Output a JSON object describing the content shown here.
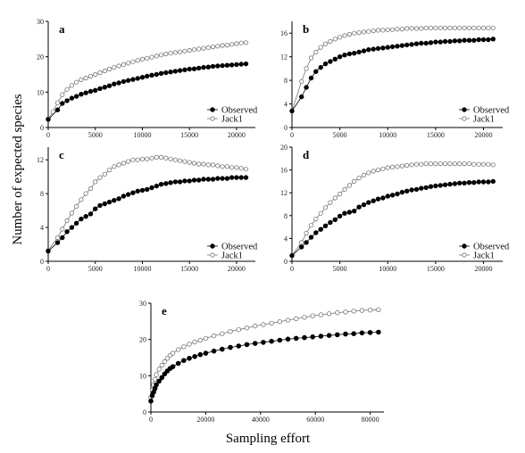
{
  "figure": {
    "ylabel": "Number of expected species",
    "xlabel": "Sampling effort"
  },
  "colors": {
    "observed": "#000000",
    "jack1": "#777777",
    "axis": "#000000"
  },
  "chart_data": [
    {
      "panel": "a",
      "type": "scatter",
      "xlim": [
        0,
        22000
      ],
      "ylim": [
        0,
        30
      ],
      "xticks": [
        0,
        5000,
        10000,
        15000,
        20000
      ],
      "yticks": [
        0,
        10,
        20,
        30
      ],
      "show_legend": true,
      "series": [
        {
          "name": "Observed",
          "key": "observed",
          "x": [
            0,
            1000,
            1500,
            2000,
            2500,
            3000,
            3500,
            4000,
            4500,
            5000,
            5500,
            6000,
            6500,
            7000,
            7500,
            8000,
            8500,
            9000,
            9500,
            10000,
            10500,
            11000,
            11500,
            12000,
            12500,
            13000,
            13500,
            14000,
            14500,
            15000,
            15500,
            16000,
            16500,
            17000,
            17500,
            18000,
            18500,
            19000,
            19500,
            20000,
            20500,
            21000
          ],
          "y": [
            2.3,
            5,
            6.8,
            7.6,
            8.3,
            8.8,
            9.4,
            9.8,
            10.2,
            10.5,
            11,
            11.4,
            11.8,
            12.3,
            12.6,
            13,
            13.3,
            13.6,
            13.9,
            14.2,
            14.5,
            14.8,
            15,
            15.3,
            15.5,
            15.7,
            15.9,
            16.1,
            16.3,
            16.5,
            16.6,
            16.8,
            17,
            17.1,
            17.3,
            17.4,
            17.5,
            17.6,
            17.7,
            17.8,
            17.9,
            18
          ]
        },
        {
          "name": "Jack1",
          "key": "jack1",
          "x": [
            0,
            500,
            1000,
            1500,
            2000,
            2500,
            3000,
            3500,
            4000,
            4500,
            5000,
            5500,
            6000,
            6500,
            7000,
            7500,
            8000,
            8500,
            9000,
            9500,
            10000,
            10500,
            11000,
            11500,
            12000,
            12500,
            13000,
            13500,
            14000,
            14500,
            15000,
            15500,
            16000,
            16500,
            17000,
            17500,
            18000,
            18500,
            19000,
            19500,
            20000,
            20500,
            21000
          ],
          "y": [
            2.5,
            4.5,
            7,
            9.3,
            10.8,
            11.9,
            12.8,
            13.5,
            14,
            14.5,
            15,
            15.5,
            16,
            16.5,
            17,
            17.4,
            17.8,
            18.2,
            18.6,
            19,
            19.3,
            19.6,
            19.9,
            20.2,
            20.5,
            20.8,
            21,
            21.2,
            21.4,
            21.6,
            21.8,
            22,
            22.2,
            22.4,
            22.6,
            22.8,
            23,
            23.2,
            23.3,
            23.5,
            23.7,
            23.9,
            24
          ]
        }
      ]
    },
    {
      "panel": "b",
      "type": "scatter",
      "xlim": [
        0,
        22000
      ],
      "ylim": [
        0,
        18
      ],
      "xticks": [
        0,
        5000,
        10000,
        15000,
        20000
      ],
      "yticks": [
        0,
        4,
        8,
        12,
        16
      ],
      "show_legend": true,
      "series": [
        {
          "name": "Observed",
          "key": "observed",
          "x": [
            0,
            1000,
            1500,
            2000,
            2500,
            3000,
            3500,
            4000,
            4500,
            5000,
            5500,
            6000,
            6500,
            7000,
            7500,
            8000,
            8500,
            9000,
            9500,
            10000,
            10500,
            11000,
            11500,
            12000,
            12500,
            13000,
            13500,
            14000,
            14500,
            15000,
            15500,
            16000,
            16500,
            17000,
            17500,
            18000,
            18500,
            19000,
            19500,
            20000,
            20500,
            21000
          ],
          "y": [
            2.8,
            5.2,
            6.8,
            8.4,
            9.5,
            10.2,
            10.8,
            11.2,
            11.6,
            12,
            12.3,
            12.5,
            12.6,
            12.8,
            13,
            13.2,
            13.3,
            13.4,
            13.5,
            13.6,
            13.7,
            13.8,
            13.9,
            14,
            14.1,
            14.2,
            14.3,
            14.3,
            14.4,
            14.5,
            14.5,
            14.6,
            14.6,
            14.7,
            14.7,
            14.8,
            14.8,
            14.8,
            14.9,
            14.9,
            14.9,
            15
          ]
        },
        {
          "name": "Jack1",
          "key": "jack1",
          "x": [
            0,
            1000,
            1500,
            2000,
            2500,
            3000,
            3500,
            4000,
            4500,
            5000,
            5500,
            6000,
            6500,
            7000,
            7500,
            8000,
            8500,
            9000,
            9500,
            10000,
            10500,
            11000,
            11500,
            12000,
            12500,
            13000,
            13500,
            14000,
            14500,
            15000,
            15500,
            16000,
            16500,
            17000,
            17500,
            18000,
            18500,
            19000,
            19500,
            20000,
            20500,
            21000
          ],
          "y": [
            2.8,
            7.8,
            10,
            11.8,
            12.8,
            13.6,
            14.2,
            14.6,
            15,
            15.3,
            15.6,
            15.8,
            16,
            16.1,
            16.2,
            16.3,
            16.4,
            16.5,
            16.5,
            16.6,
            16.6,
            16.7,
            16.7,
            16.8,
            16.8,
            16.8,
            16.8,
            16.9,
            16.9,
            16.9,
            16.9,
            16.9,
            16.9,
            16.9,
            16.9,
            16.9,
            16.9,
            16.9,
            16.9,
            16.9,
            16.9,
            16.9
          ]
        }
      ]
    },
    {
      "panel": "c",
      "type": "scatter",
      "xlim": [
        0,
        22000
      ],
      "ylim": [
        0,
        13.5
      ],
      "xticks": [
        0,
        5000,
        10000,
        15000,
        20000
      ],
      "yticks": [
        0,
        4,
        8,
        12
      ],
      "show_legend": true,
      "series": [
        {
          "name": "Observed",
          "key": "observed",
          "x": [
            0,
            1000,
            1500,
            2000,
            2500,
            3000,
            3500,
            4000,
            4500,
            5000,
            5500,
            6000,
            6500,
            7000,
            7500,
            8000,
            8500,
            9000,
            9500,
            10000,
            10500,
            11000,
            11500,
            12000,
            12500,
            13000,
            13500,
            14000,
            14500,
            15000,
            15500,
            16000,
            16500,
            17000,
            17500,
            18000,
            18500,
            19000,
            19500,
            20000,
            20500,
            21000
          ],
          "y": [
            1.2,
            2.2,
            2.8,
            3.5,
            4,
            4.5,
            5,
            5.3,
            5.6,
            6.2,
            6.6,
            6.8,
            7,
            7.2,
            7.4,
            7.7,
            7.9,
            8.1,
            8.3,
            8.4,
            8.5,
            8.7,
            8.9,
            9.1,
            9.2,
            9.3,
            9.4,
            9.4,
            9.5,
            9.5,
            9.6,
            9.6,
            9.7,
            9.7,
            9.7,
            9.8,
            9.8,
            9.8,
            9.9,
            9.9,
            9.9,
            9.9
          ]
        },
        {
          "name": "Jack1",
          "key": "jack1",
          "x": [
            0,
            1000,
            1500,
            2000,
            2500,
            3000,
            3500,
            4000,
            4500,
            5000,
            5500,
            6000,
            6500,
            7000,
            7500,
            8000,
            8500,
            9000,
            9500,
            10000,
            10500,
            11000,
            11500,
            12000,
            12500,
            13000,
            13500,
            14000,
            14500,
            15000,
            15500,
            16000,
            16500,
            17000,
            17500,
            18000,
            18500,
            19000,
            19500,
            20000,
            20500,
            21000
          ],
          "y": [
            1.3,
            2.8,
            3.8,
            4.8,
            5.7,
            6.5,
            7.3,
            8,
            8.6,
            9.4,
            9.9,
            10.3,
            10.8,
            11.2,
            11.4,
            11.6,
            11.8,
            12,
            12,
            12.1,
            12.1,
            12.2,
            12.3,
            12.3,
            12.2,
            12.1,
            12,
            11.9,
            11.8,
            11.7,
            11.6,
            11.5,
            11.5,
            11.4,
            11.4,
            11.3,
            11.2,
            11.2,
            11.1,
            11.1,
            11,
            10.9
          ]
        }
      ]
    },
    {
      "panel": "d",
      "type": "scatter",
      "xlim": [
        0,
        22000
      ],
      "ylim": [
        0,
        20
      ],
      "xticks": [
        0,
        5000,
        10000,
        15000,
        20000
      ],
      "yticks": [
        0,
        4,
        8,
        12,
        16,
        20
      ],
      "show_legend": true,
      "series": [
        {
          "name": "Observed",
          "key": "observed",
          "x": [
            0,
            1000,
            1500,
            2000,
            2500,
            3000,
            3500,
            4000,
            4500,
            5000,
            5500,
            6000,
            6500,
            7000,
            7500,
            8000,
            8500,
            9000,
            9500,
            10000,
            10500,
            11000,
            11500,
            12000,
            12500,
            13000,
            13500,
            14000,
            14500,
            15000,
            15500,
            16000,
            16500,
            17000,
            17500,
            18000,
            18500,
            19000,
            19500,
            20000,
            20500,
            21000
          ],
          "y": [
            1,
            2.5,
            3.3,
            4.2,
            5,
            5.6,
            6.2,
            6.8,
            7.3,
            7.9,
            8.4,
            8.6,
            8.8,
            9.5,
            9.9,
            10.3,
            10.6,
            10.9,
            11.1,
            11.4,
            11.6,
            11.8,
            12.1,
            12.3,
            12.5,
            12.6,
            12.8,
            12.9,
            13.1,
            13.2,
            13.3,
            13.4,
            13.5,
            13.6,
            13.7,
            13.7,
            13.8,
            13.8,
            13.9,
            13.9,
            13.9,
            14
          ]
        },
        {
          "name": "Jack1",
          "key": "jack1",
          "x": [
            0,
            1000,
            1500,
            2000,
            2500,
            3000,
            3500,
            4000,
            4500,
            5000,
            5500,
            6000,
            6500,
            7000,
            7500,
            8000,
            8500,
            9000,
            9500,
            10000,
            10500,
            11000,
            11500,
            12000,
            12500,
            13000,
            13500,
            14000,
            14500,
            15000,
            15500,
            16000,
            16500,
            17000,
            17500,
            18000,
            18500,
            19000,
            19500,
            20000,
            20500,
            21000
          ],
          "y": [
            1,
            3.3,
            4.9,
            6.3,
            7.4,
            8.4,
            9.4,
            10.3,
            11.1,
            11.8,
            12.6,
            13.3,
            14,
            14.6,
            15.1,
            15.5,
            15.8,
            16,
            16.2,
            16.4,
            16.5,
            16.6,
            16.7,
            16.8,
            16.9,
            17,
            17,
            17.1,
            17.1,
            17.1,
            17.1,
            17.1,
            17.1,
            17.1,
            17.1,
            17.1,
            17.1,
            17,
            17,
            17,
            17,
            16.9
          ]
        }
      ]
    },
    {
      "panel": "e",
      "type": "scatter",
      "xlim": [
        0,
        85000
      ],
      "ylim": [
        0,
        30
      ],
      "xticks": [
        0,
        20000,
        40000,
        60000,
        80000
      ],
      "yticks": [
        0,
        10,
        20,
        30
      ],
      "show_legend": false,
      "series": [
        {
          "name": "Observed",
          "key": "observed",
          "x": [
            0,
            500,
            1000,
            1500,
            2000,
            3000,
            4000,
            5000,
            6000,
            7000,
            8000,
            10000,
            12000,
            14000,
            16000,
            18000,
            20000,
            23000,
            26000,
            29000,
            32000,
            35000,
            38000,
            41000,
            44000,
            47000,
            50000,
            53000,
            56000,
            59000,
            62000,
            65000,
            68000,
            71000,
            74000,
            77000,
            80000,
            83000
          ],
          "y": [
            3,
            4.5,
            5.5,
            6.5,
            7.5,
            8.5,
            9.5,
            10.5,
            11.3,
            12,
            12.5,
            13.4,
            14.2,
            14.8,
            15.3,
            15.8,
            16.2,
            16.8,
            17.3,
            17.8,
            18.2,
            18.6,
            18.9,
            19.2,
            19.5,
            19.8,
            20.1,
            20.3,
            20.5,
            20.7,
            20.9,
            21.1,
            21.3,
            21.5,
            21.6,
            21.8,
            21.9,
            22
          ]
        },
        {
          "name": "Jack1",
          "key": "jack1",
          "x": [
            0,
            500,
            1000,
            1500,
            2000,
            3000,
            4000,
            5000,
            6000,
            7000,
            8000,
            10000,
            12000,
            14000,
            16000,
            18000,
            20000,
            23000,
            26000,
            29000,
            32000,
            35000,
            38000,
            41000,
            44000,
            47000,
            50000,
            53000,
            56000,
            59000,
            62000,
            65000,
            68000,
            71000,
            74000,
            77000,
            80000,
            83000
          ],
          "y": [
            4,
            6,
            7.5,
            9,
            10.3,
            11.8,
            12.9,
            13.9,
            14.8,
            15.6,
            16.2,
            17.2,
            18,
            18.7,
            19.3,
            19.8,
            20.3,
            21,
            21.6,
            22.2,
            22.7,
            23.2,
            23.7,
            24.1,
            24.5,
            24.9,
            25.3,
            25.7,
            26.1,
            26.5,
            26.8,
            27.1,
            27.4,
            27.6,
            27.8,
            28,
            28.1,
            28.2
          ]
        }
      ]
    }
  ]
}
